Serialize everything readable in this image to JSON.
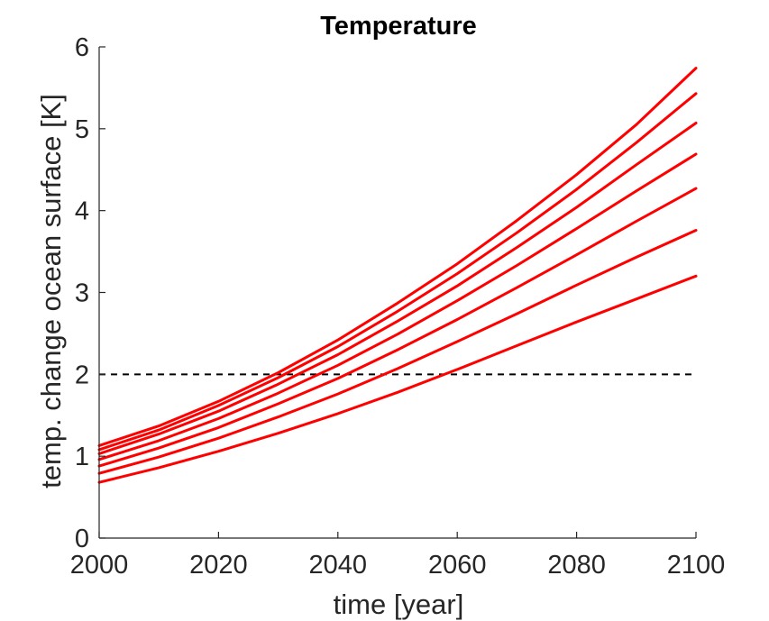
{
  "chart_data": {
    "type": "line",
    "title": "Temperature",
    "xlabel": "time [year]",
    "ylabel": "temp. change ocean surface [K]",
    "xlim": [
      2000,
      2100
    ],
    "ylim": [
      0,
      6
    ],
    "xticks": [
      2000,
      2020,
      2040,
      2060,
      2080,
      2100
    ],
    "yticks": [
      0,
      1,
      2,
      3,
      4,
      5,
      6
    ],
    "x": [
      2000,
      2010,
      2020,
      2030,
      2040,
      2050,
      2060,
      2070,
      2080,
      2090,
      2100
    ],
    "series": [
      {
        "color": "#ff0000",
        "values": [
          1.13,
          1.37,
          1.67,
          2.02,
          2.42,
          2.87,
          3.35,
          3.88,
          4.44,
          5.05,
          5.74
        ]
      },
      {
        "color": "#ff0000",
        "values": [
          1.08,
          1.32,
          1.62,
          1.96,
          2.34,
          2.77,
          3.23,
          3.73,
          4.26,
          4.83,
          5.43
        ]
      },
      {
        "color": "#ff0000",
        "values": [
          1.03,
          1.27,
          1.55,
          1.88,
          2.24,
          2.65,
          3.08,
          3.55,
          4.04,
          4.56,
          5.07
        ]
      },
      {
        "color": "#ff0000",
        "values": [
          0.96,
          1.19,
          1.46,
          1.77,
          2.11,
          2.49,
          2.9,
          3.33,
          3.78,
          4.24,
          4.69
        ]
      },
      {
        "color": "#ff0000",
        "values": [
          0.88,
          1.1,
          1.35,
          1.64,
          1.95,
          2.3,
          2.67,
          3.06,
          3.46,
          3.87,
          4.27
        ]
      },
      {
        "color": "#ff0000",
        "values": [
          0.79,
          0.99,
          1.22,
          1.48,
          1.76,
          2.07,
          2.4,
          2.74,
          3.09,
          3.43,
          3.76
        ]
      },
      {
        "color": "#ff0000",
        "values": [
          0.68,
          0.86,
          1.06,
          1.28,
          1.52,
          1.78,
          2.06,
          2.35,
          2.64,
          2.92,
          3.2
        ]
      }
    ],
    "reference_line": {
      "y": 2,
      "style": "dashed",
      "color": "#000000"
    },
    "grid": false,
    "legend": "none"
  }
}
